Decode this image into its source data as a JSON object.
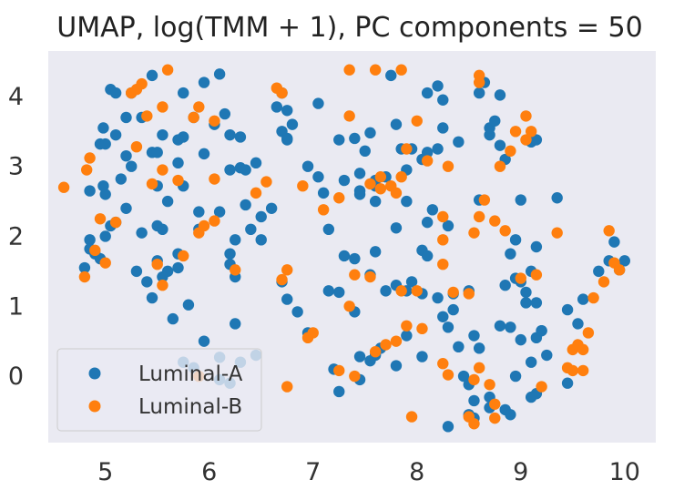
{
  "chart_data": {
    "type": "scatter",
    "title": "UMAP, log(TMM + 1), PC components = 50",
    "xlabel": "",
    "ylabel": "",
    "xlim": [
      4.45,
      10.3
    ],
    "ylim": [
      -0.95,
      4.65
    ],
    "xticks": [
      5,
      6,
      7,
      8,
      9,
      10
    ],
    "yticks": [
      0,
      1,
      2,
      3,
      4
    ],
    "grid": false,
    "background": "#eaeaf2",
    "legend": {
      "placement": "lower-left"
    },
    "series": [
      {
        "name": "Luminal-A",
        "color": "#1f77b4",
        "points": [
          [
            5.45,
            4.3
          ],
          [
            6.1,
            4.32
          ],
          [
            5.95,
            4.2
          ],
          [
            5.75,
            4.05
          ],
          [
            5.05,
            4.1
          ],
          [
            5.1,
            4.05
          ],
          [
            5.25,
            4.05
          ],
          [
            4.98,
            3.55
          ],
          [
            5.2,
            3.7
          ],
          [
            5.35,
            3.7
          ],
          [
            5.85,
            3.7
          ],
          [
            6.05,
            3.6
          ],
          [
            6.15,
            3.75
          ],
          [
            5.55,
            3.45
          ],
          [
            5.75,
            3.42
          ],
          [
            6.2,
            3.45
          ],
          [
            6.3,
            3.42
          ],
          [
            5.1,
            3.45
          ],
          [
            4.95,
            3.32
          ],
          [
            5.0,
            3.32
          ],
          [
            5.45,
            3.2
          ],
          [
            5.5,
            3.2
          ],
          [
            5.7,
            3.38
          ],
          [
            5.95,
            3.18
          ],
          [
            5.25,
            3.0
          ],
          [
            5.2,
            3.15
          ],
          [
            5.7,
            3.05
          ],
          [
            6.2,
            2.95
          ],
          [
            6.3,
            2.98
          ],
          [
            6.35,
            2.95
          ],
          [
            6.45,
            3.05
          ],
          [
            5.15,
            2.82
          ],
          [
            5.5,
            2.72
          ],
          [
            5.75,
            2.72
          ],
          [
            5.6,
            2.5
          ],
          [
            4.85,
            2.65
          ],
          [
            5.0,
            2.6
          ],
          [
            4.98,
            2.72
          ],
          [
            5.2,
            2.4
          ],
          [
            5.9,
            2.35
          ],
          [
            6.1,
            2.35
          ],
          [
            6.35,
            2.45
          ],
          [
            6.5,
            2.28
          ],
          [
            6.6,
            2.4
          ],
          [
            5.05,
            2.15
          ],
          [
            5.1,
            2.2
          ],
          [
            5.35,
            2.05
          ],
          [
            5.5,
            2.15
          ],
          [
            5.55,
            2.1
          ],
          [
            5.9,
            2.1
          ],
          [
            6.25,
            1.95
          ],
          [
            6.4,
            2.1
          ],
          [
            6.5,
            1.95
          ],
          [
            4.85,
            1.95
          ],
          [
            4.85,
            1.82
          ],
          [
            4.9,
            1.75
          ],
          [
            4.95,
            1.68
          ],
          [
            5.0,
            2.0
          ],
          [
            4.8,
            1.55
          ],
          [
            5.3,
            1.5
          ],
          [
            5.4,
            1.35
          ],
          [
            5.5,
            1.65
          ],
          [
            5.6,
            1.5
          ],
          [
            5.7,
            1.55
          ],
          [
            5.7,
            1.75
          ],
          [
            6.2,
            1.75
          ],
          [
            6.2,
            1.6
          ],
          [
            6.25,
            1.42
          ],
          [
            5.45,
            1.12
          ],
          [
            5.55,
            1.42
          ],
          [
            5.65,
            0.82
          ],
          [
            5.8,
            1.02
          ],
          [
            6.25,
            0.75
          ],
          [
            5.95,
            0.5
          ],
          [
            5.75,
            0.2
          ],
          [
            5.85,
            0.12
          ],
          [
            6.1,
            0.27
          ],
          [
            6.1,
            -0.05
          ],
          [
            6.2,
            -0.1
          ],
          [
            6.3,
            0.2
          ],
          [
            6.45,
            0.3
          ],
          [
            6.7,
            4.05
          ],
          [
            6.75,
            3.8
          ],
          [
            6.65,
            3.85
          ],
          [
            6.8,
            3.6
          ],
          [
            6.7,
            3.5
          ],
          [
            6.75,
            3.4
          ],
          [
            6.75,
            3.38
          ],
          [
            7.05,
            3.9
          ],
          [
            7.25,
            3.38
          ],
          [
            6.95,
            3.0
          ],
          [
            7.05,
            2.85
          ],
          [
            7.1,
            2.62
          ],
          [
            7.15,
            2.1
          ],
          [
            7.3,
            2.8
          ],
          [
            7.4,
            3.4
          ],
          [
            7.45,
            2.9
          ],
          [
            7.5,
            3.22
          ],
          [
            7.45,
            2.6
          ],
          [
            7.55,
            3.48
          ],
          [
            7.6,
            2.5
          ],
          [
            7.6,
            2.72
          ],
          [
            7.45,
            2.65
          ],
          [
            7.6,
            2.8
          ],
          [
            7.7,
            2.85
          ],
          [
            7.75,
            4.3
          ],
          [
            7.8,
            3.6
          ],
          [
            7.85,
            3.25
          ],
          [
            7.95,
            3.25
          ],
          [
            7.9,
            2.95
          ],
          [
            8.05,
            3.1
          ],
          [
            8.1,
            3.2
          ],
          [
            8.2,
            3.25
          ],
          [
            8.25,
            3.55
          ],
          [
            8.1,
            4.05
          ],
          [
            8.2,
            4.15
          ],
          [
            8.25,
            3.95
          ],
          [
            8.4,
            3.35
          ],
          [
            7.8,
            2.12
          ],
          [
            7.9,
            2.5
          ],
          [
            8.15,
            2.38
          ],
          [
            8.1,
            2.2
          ],
          [
            8.05,
            1.8
          ],
          [
            8.1,
            1.72
          ],
          [
            8.3,
            2.15
          ],
          [
            7.3,
            1.72
          ],
          [
            7.4,
            1.68
          ],
          [
            7.55,
            1.45
          ],
          [
            7.6,
            1.78
          ],
          [
            7.7,
            1.22
          ],
          [
            7.8,
            1.3
          ],
          [
            7.9,
            1.22
          ],
          [
            7.95,
            1.35
          ],
          [
            8.05,
            1.18
          ],
          [
            8.2,
            1.12
          ],
          [
            8.35,
            1.18
          ],
          [
            8.5,
            1.22
          ],
          [
            6.7,
            1.35
          ],
          [
            6.75,
            1.1
          ],
          [
            6.85,
            0.92
          ],
          [
            6.95,
            0.62
          ],
          [
            7.15,
            1.22
          ],
          [
            7.25,
            1.2
          ],
          [
            7.4,
            0.92
          ],
          [
            7.2,
            0.1
          ],
          [
            7.25,
            -0.22
          ],
          [
            7.45,
            0.28
          ],
          [
            7.45,
            -0.05
          ],
          [
            7.6,
            0.3
          ],
          [
            7.65,
            0.4
          ],
          [
            7.55,
            0.22
          ],
          [
            7.8,
            0.15
          ],
          [
            7.9,
            0.58
          ],
          [
            8.05,
            0.28
          ],
          [
            8.25,
            0.85
          ],
          [
            8.3,
            0.7
          ],
          [
            8.35,
            0.95
          ],
          [
            8.4,
            0.42
          ],
          [
            8.45,
            0.0
          ],
          [
            8.5,
            -0.12
          ],
          [
            8.55,
            0.58
          ],
          [
            8.6,
            0.4
          ],
          [
            8.55,
            -0.35
          ],
          [
            8.5,
            -0.55
          ],
          [
            8.55,
            -0.6
          ],
          [
            8.3,
            -0.72
          ],
          [
            8.7,
            -0.45
          ],
          [
            8.7,
            -0.3
          ],
          [
            8.85,
            -0.48
          ],
          [
            8.9,
            -0.55
          ],
          [
            8.8,
            0.72
          ],
          [
            8.9,
            0.7
          ],
          [
            8.95,
            0.0
          ],
          [
            9.0,
            0.52
          ],
          [
            9.1,
            0.2
          ],
          [
            9.15,
            0.55
          ],
          [
            9.2,
            0.65
          ],
          [
            9.25,
            0.3
          ],
          [
            9.15,
            -0.25
          ],
          [
            9.1,
            -0.3
          ],
          [
            9.0,
            1.35
          ],
          [
            8.95,
            1.4
          ],
          [
            9.05,
            1.2
          ],
          [
            9.05,
            1.05
          ],
          [
            9.15,
            1.05
          ],
          [
            9.2,
            0.65
          ],
          [
            9.1,
            1.5
          ],
          [
            9.15,
            1.85
          ],
          [
            8.85,
            1.3
          ],
          [
            8.9,
            1.75
          ],
          [
            8.95,
            1.95
          ],
          [
            9.0,
            2.52
          ],
          [
            9.35,
            2.55
          ],
          [
            8.7,
            3.45
          ],
          [
            8.7,
            3.55
          ],
          [
            8.75,
            3.65
          ],
          [
            8.8,
            3.3
          ],
          [
            8.85,
            3.1
          ],
          [
            8.6,
            4.05
          ],
          [
            8.65,
            4.2
          ],
          [
            8.8,
            4.02
          ],
          [
            9.1,
            3.35
          ],
          [
            9.15,
            3.38
          ],
          [
            8.6,
            2.52
          ],
          [
            9.45,
            0.95
          ],
          [
            9.55,
            0.75
          ],
          [
            9.45,
            -0.1
          ],
          [
            9.6,
            1.1
          ],
          [
            9.85,
            1.65
          ],
          [
            9.9,
            1.92
          ],
          [
            9.75,
            1.5
          ],
          [
            9.95,
            1.52
          ],
          [
            10.0,
            1.65
          ]
        ]
      },
      {
        "name": "Luminal-B",
        "color": "#ff7f0e",
        "points": [
          [
            5.25,
            4.05
          ],
          [
            5.3,
            4.1
          ],
          [
            5.35,
            4.18
          ],
          [
            5.55,
            3.85
          ],
          [
            5.4,
            3.72
          ],
          [
            5.9,
            3.85
          ],
          [
            6.05,
            3.65
          ],
          [
            4.85,
            3.12
          ],
          [
            4.82,
            2.95
          ],
          [
            5.3,
            3.28
          ],
          [
            5.55,
            2.95
          ],
          [
            5.7,
            2.8
          ],
          [
            6.05,
            2.82
          ],
          [
            4.6,
            2.7
          ],
          [
            5.45,
            2.75
          ],
          [
            4.9,
            1.8
          ],
          [
            4.95,
            2.25
          ],
          [
            4.8,
            1.42
          ],
          [
            5.0,
            1.62
          ],
          [
            5.1,
            2.2
          ],
          [
            5.9,
            2.05
          ],
          [
            5.95,
            2.15
          ],
          [
            5.75,
            1.72
          ],
          [
            5.5,
            1.6
          ],
          [
            5.55,
            1.3
          ],
          [
            5.9,
            0.0
          ],
          [
            6.25,
            1.52
          ],
          [
            6.45,
            2.62
          ],
          [
            6.7,
            4.05
          ],
          [
            6.65,
            4.12
          ],
          [
            6.55,
            2.78
          ],
          [
            6.9,
            2.72
          ],
          [
            7.1,
            2.38
          ],
          [
            7.35,
            3.72
          ],
          [
            7.25,
            2.55
          ],
          [
            7.4,
            1.45
          ],
          [
            7.35,
            1.0
          ],
          [
            7.55,
            2.75
          ],
          [
            7.65,
            2.85
          ],
          [
            7.65,
            2.68
          ],
          [
            7.75,
            2.72
          ],
          [
            7.85,
            2.85
          ],
          [
            7.8,
            2.62
          ],
          [
            7.9,
            3.25
          ],
          [
            7.35,
            4.38
          ],
          [
            7.6,
            4.38
          ],
          [
            7.85,
            4.38
          ],
          [
            8.0,
            3.65
          ],
          [
            8.1,
            3.08
          ],
          [
            8.3,
            3.0
          ],
          [
            8.25,
            2.28
          ],
          [
            8.25,
            1.95
          ],
          [
            8.25,
            1.6
          ],
          [
            8.35,
            1.2
          ],
          [
            8.5,
            1.18
          ],
          [
            8.6,
            2.28
          ],
          [
            8.55,
            2.05
          ],
          [
            8.75,
            2.22
          ],
          [
            8.8,
            3.0
          ],
          [
            8.9,
            3.22
          ],
          [
            8.95,
            3.5
          ],
          [
            9.05,
            3.38
          ],
          [
            9.1,
            3.5
          ],
          [
            9.05,
            3.72
          ],
          [
            8.6,
            4.3
          ],
          [
            8.6,
            4.2
          ],
          [
            8.65,
            2.52
          ],
          [
            8.85,
            2.08
          ],
          [
            9.0,
            1.4
          ],
          [
            9.15,
            1.45
          ],
          [
            9.2,
            -0.15
          ],
          [
            9.35,
            2.05
          ],
          [
            7.55,
            1.42
          ],
          [
            7.85,
            1.22
          ],
          [
            8.0,
            1.22
          ],
          [
            7.8,
            0.5
          ],
          [
            7.9,
            0.72
          ],
          [
            8.05,
            0.68
          ],
          [
            7.6,
            0.35
          ],
          [
            7.7,
            0.45
          ],
          [
            7.95,
            -0.58
          ],
          [
            8.25,
            0.18
          ],
          [
            8.3,
            0.02
          ],
          [
            8.5,
            -0.58
          ],
          [
            8.55,
            -0.68
          ],
          [
            8.55,
            -0.05
          ],
          [
            8.6,
            0.12
          ],
          [
            8.75,
            -0.6
          ],
          [
            8.7,
            -0.12
          ],
          [
            8.75,
            -0.4
          ],
          [
            6.05,
            2.22
          ],
          [
            6.7,
            1.38
          ],
          [
            6.75,
            1.52
          ],
          [
            6.75,
            -0.15
          ],
          [
            6.95,
            0.55
          ],
          [
            7.0,
            0.62
          ],
          [
            7.25,
            0.08
          ],
          [
            7.4,
            0.0
          ],
          [
            9.5,
            0.38
          ],
          [
            9.5,
            0.08
          ],
          [
            9.55,
            0.45
          ],
          [
            9.6,
            0.38
          ],
          [
            9.65,
            0.62
          ],
          [
            9.6,
            0.08
          ],
          [
            9.45,
            0.12
          ],
          [
            9.7,
            1.12
          ],
          [
            9.8,
            1.35
          ],
          [
            9.9,
            1.62
          ],
          [
            9.85,
            2.08
          ],
          [
            9.95,
            1.52
          ],
          [
            5.6,
            4.38
          ],
          [
            5.85,
            3.7
          ]
        ]
      }
    ]
  }
}
